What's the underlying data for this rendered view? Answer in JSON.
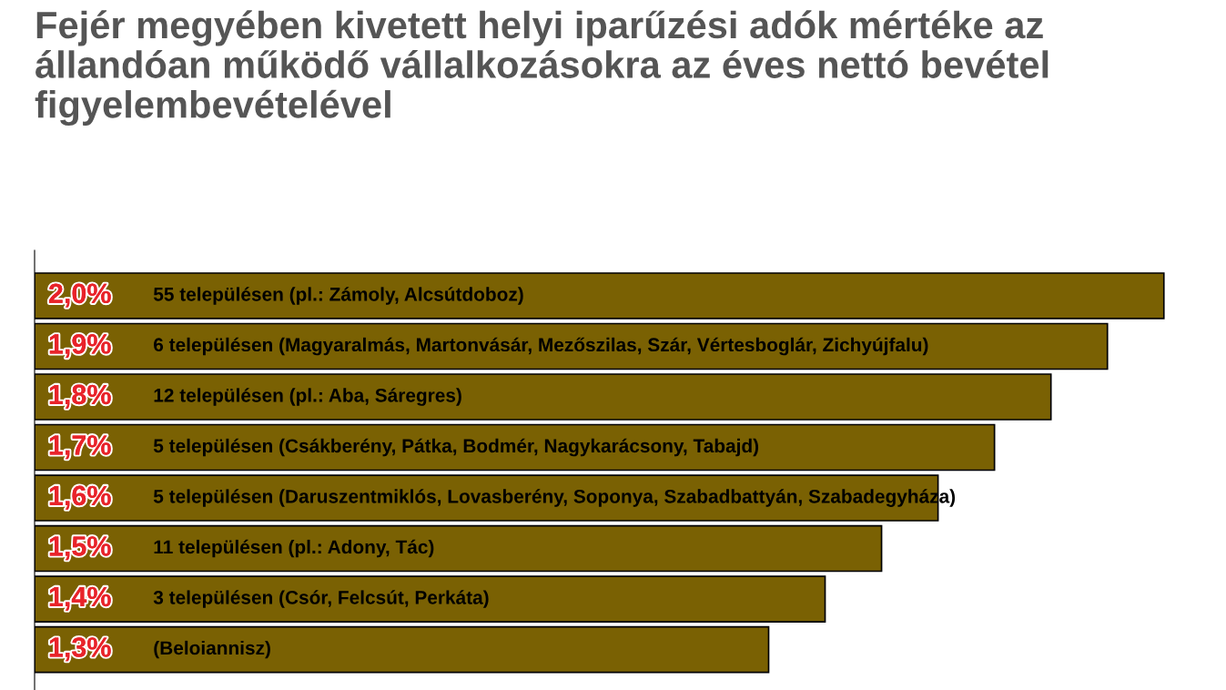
{
  "chart_data": {
    "type": "bar",
    "orientation": "horizontal",
    "title": "Fejér megyében kivetett helyi iparűzési adók mértéke az állandóan működő vállalkozásokra az éves nettó bevétel figyelembevételével",
    "categories": [
      "55 településen (pl.: Zámoly, Alcsútdoboz)",
      "6 településen (Magyaralmás, Martonvásár, Mezőszilas, Szár, Vértesboglár, Zichyújfalu)",
      "12 településen (pl.: Aba, Sáregres)",
      "5 településen (Csákberény, Pátka, Bodmér, Nagykarácsony, Tabajd)",
      "5 településen (Daruszentmiklós, Lovasberény, Soponya, Szabadbattyán, Szabadegyháza)",
      "11 településen (pl.: Adony, Tác)",
      "3 településen (Csór, Felcsút, Perkáta)",
      "(Beloiannisz)"
    ],
    "values": [
      2.0,
      1.9,
      1.8,
      1.7,
      1.6,
      1.5,
      1.4,
      1.3
    ],
    "value_labels": [
      "2,0%",
      "1,9%",
      "1,8%",
      "1,7%",
      "1,6%",
      "1,5%",
      "1,4%",
      "1,3%"
    ],
    "color": "#7a6103",
    "tick_labels": false,
    "legend": false
  }
}
